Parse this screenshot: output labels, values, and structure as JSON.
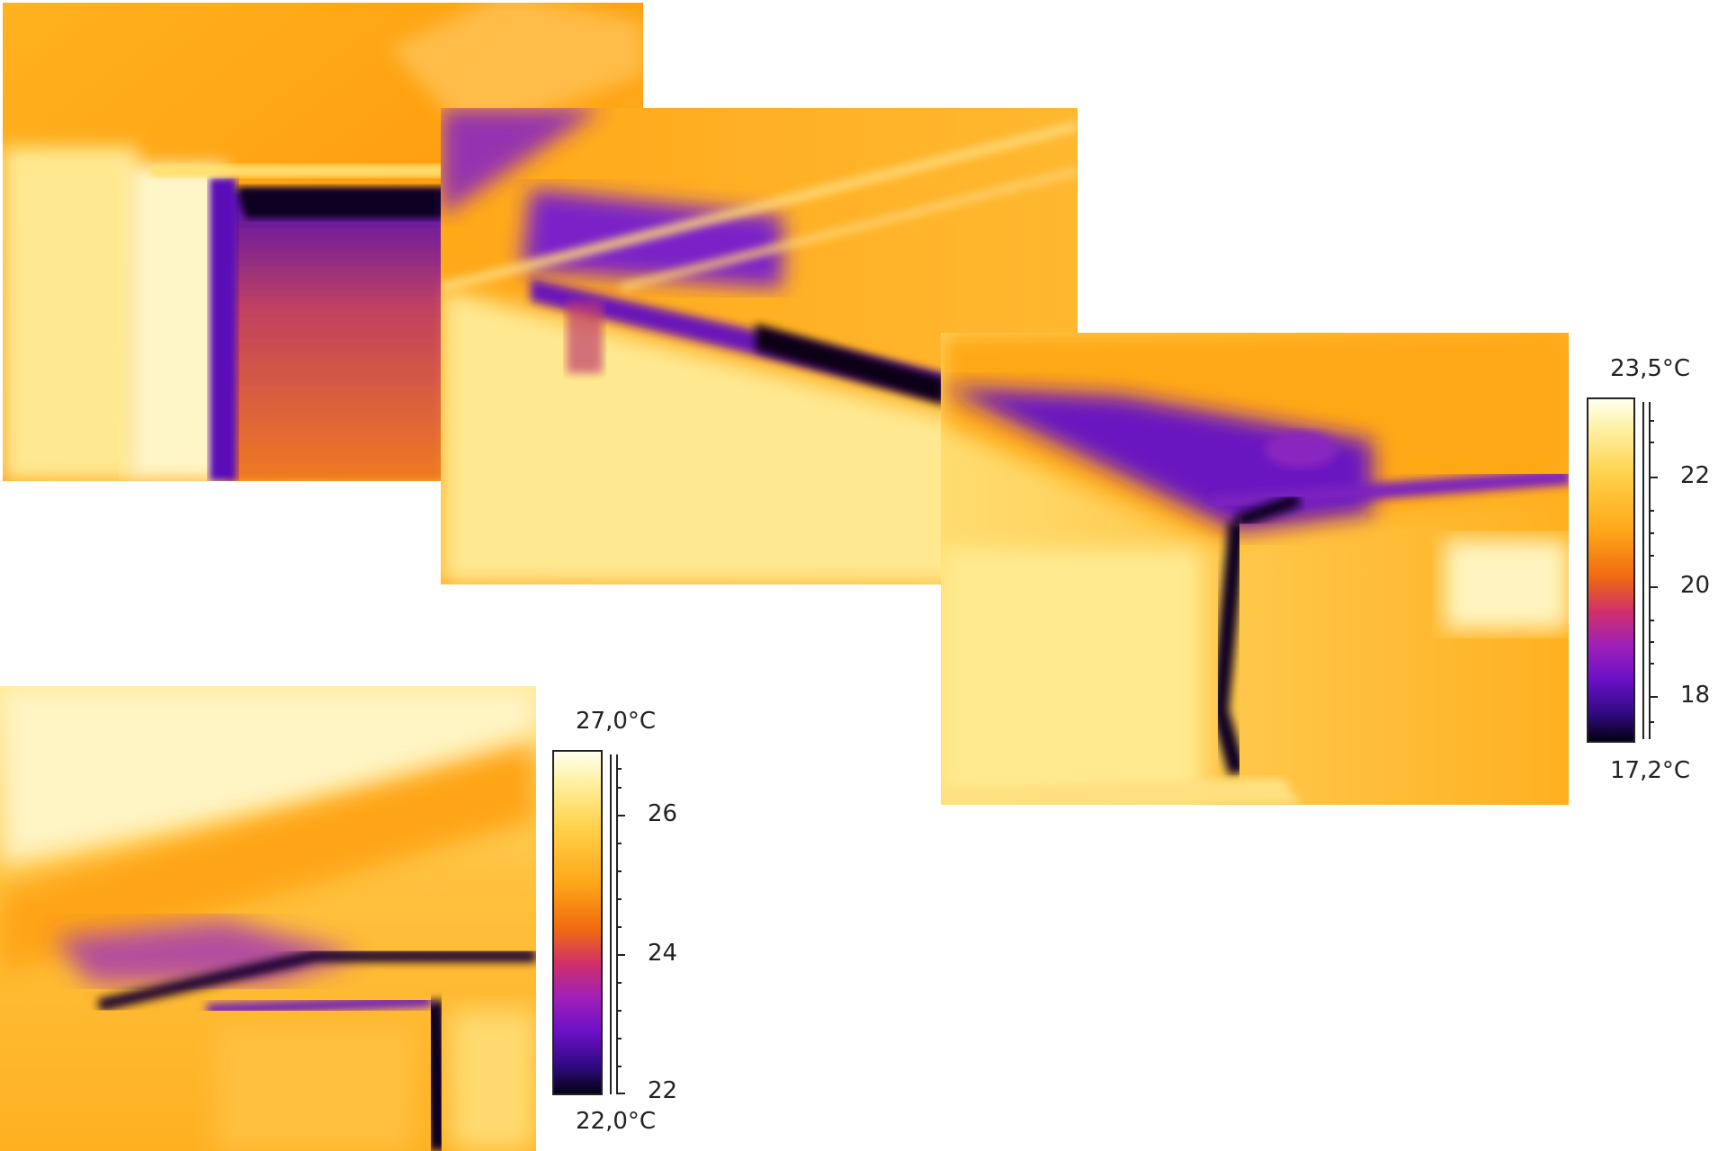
{
  "scale_top": {
    "max_label": "23,5°C",
    "min_label": "17,2°C",
    "ticks": [
      "22",
      "20",
      "18"
    ]
  },
  "scale_bottom": {
    "max_label": "27,0°C",
    "min_label": "22,0°C",
    "ticks": [
      "26",
      "24",
      "22"
    ]
  },
  "colors": {
    "hot": "#fffff0",
    "warm": "#ffb020",
    "mid": "#e04a40",
    "cool": "#7a18c8",
    "cold": "#080018"
  }
}
